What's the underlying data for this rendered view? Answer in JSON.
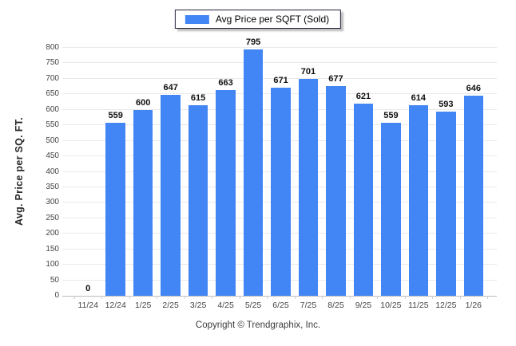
{
  "legend": {
    "label": "Avg Price per SQFT (Sold)",
    "swatch_color": "#4285F4"
  },
  "axes": {
    "y_title": "Avg. Price per SQ. FT."
  },
  "footer": {
    "copyright": "Copyright © Trendgraphix, Inc."
  },
  "colors": {
    "bar": "#4285F4",
    "grid": "#e9e9e9",
    "axis_line": "#bcbcbc",
    "tick_label": "#454545",
    "value_label": "#101010"
  },
  "chart_data": {
    "type": "bar",
    "title": "",
    "series_name": "Avg Price per SQFT (Sold)",
    "categories": [
      "11/24",
      "12/24",
      "1/25",
      "2/25",
      "3/25",
      "4/25",
      "5/25",
      "6/25",
      "7/25",
      "8/25",
      "9/25",
      "10/25",
      "11/25",
      "12/25",
      "1/26"
    ],
    "values": [
      0,
      559,
      600,
      647,
      615,
      663,
      795,
      671,
      701,
      677,
      621,
      559,
      614,
      593,
      646
    ],
    "xlabel": "",
    "ylabel": "Avg. Price per SQ. FT.",
    "ylim": [
      0,
      800
    ],
    "ytick_step": 50,
    "grid": true,
    "legend_position": "top-center",
    "bar_color": "#4285F4"
  }
}
